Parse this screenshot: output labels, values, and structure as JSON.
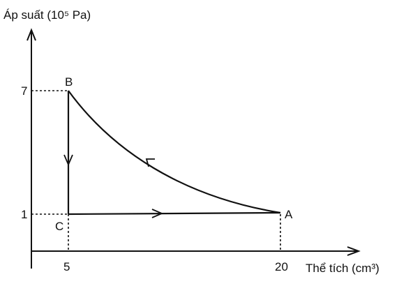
{
  "y_axis": {
    "label": "Áp suất (10⁵ Pa)",
    "ticks": [
      "7",
      "1"
    ]
  },
  "x_axis": {
    "label": "Thể tích (cm³)",
    "ticks": [
      "5",
      "20"
    ]
  },
  "points": [
    {
      "label": "A"
    },
    {
      "label": "B"
    },
    {
      "label": "C"
    }
  ]
}
